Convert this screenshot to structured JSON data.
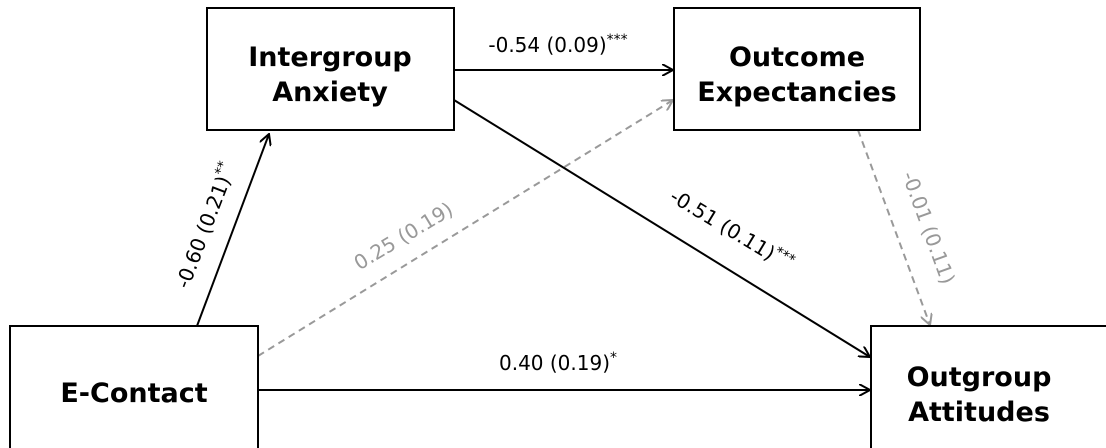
{
  "nodes": [
    {
      "lines": [
        "Intergroup",
        "Anxiety"
      ]
    },
    {
      "lines": [
        "Outcome",
        "Expectancies"
      ]
    },
    {
      "lines": [
        "E-Contact"
      ]
    },
    {
      "lines": [
        "Outgroup",
        "Attitudes"
      ]
    }
  ],
  "edges": [
    {
      "coef": "-0.60 (0.21)",
      "sig": "**"
    },
    {
      "coef": "-0.54 (0.09)",
      "sig": "***"
    },
    {
      "coef": "0.25 (0.19)"
    },
    {
      "coef": "-0.51 (0.11)",
      "sig": "***"
    },
    {
      "coef": "-0.01 (0.11)"
    },
    {
      "coef": "0.40 (0.19)",
      "sig": "*"
    }
  ]
}
